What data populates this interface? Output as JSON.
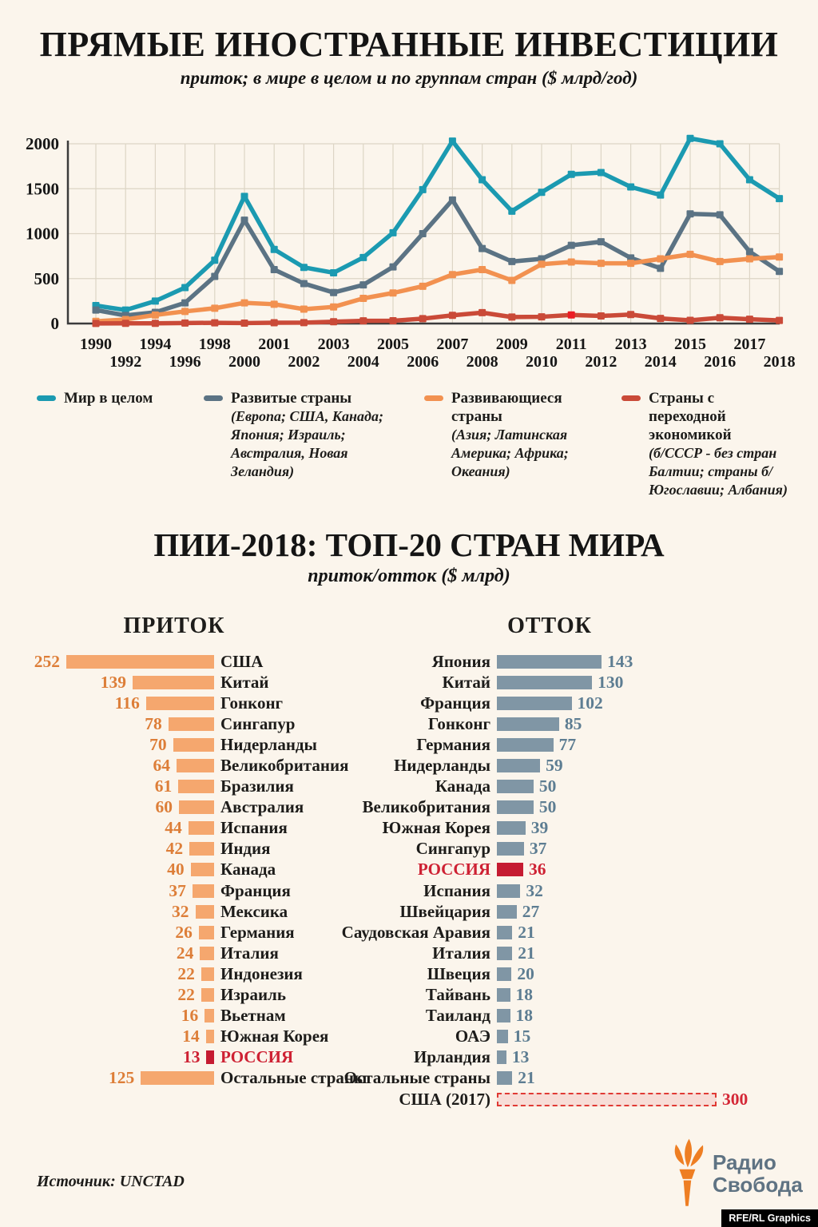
{
  "colors": {
    "background": "#fbf5ec",
    "world": "#1b9ab1",
    "developed": "#5b7384",
    "developing": "#f29150",
    "transition": "#ca4a38",
    "transition_highlight": "#ec1c24",
    "grid": "#ddd5c5",
    "axis": "#3b3b3b",
    "inflow_bar": "#f5a76e",
    "inflow_value": "#dd7e38",
    "outflow_bar": "#8096a5",
    "outflow_value": "#5d7d92",
    "russia_text": "#ce2133",
    "russia_bar": "#c51b31",
    "usa2017_fill": "#f7ddd7",
    "usa2017_border": "#e03a34",
    "usa2017_value": "#d42736",
    "inflow_header": "#f0954d",
    "outflow_header": "#8397a7"
  },
  "header": {
    "title": "ПРЯМЫЕ ИНОСТРАННЫЕ ИНВЕСТИЦИИ",
    "subtitle": "приток; в мире в целом и по группам стран ($ млрд/год)"
  },
  "legend": {
    "items": [
      {
        "label": "Мир в целом",
        "sub": "",
        "color_key": "world"
      },
      {
        "label": "Развитые страны",
        "sub": "(Европа; США, Канада; Япония; Израиль; Австралия, Новая Зеландия)",
        "color_key": "developed"
      },
      {
        "label": "Развивающиеся страны",
        "sub": "(Азия; Латинская Америка; Африка; Океания)",
        "color_key": "developing"
      },
      {
        "label": "Страны с переходной экономикой",
        "sub": "(б/СССР - без стран Балтии; страны б/Югославии; Албания)",
        "color_key": "transition"
      }
    ]
  },
  "section2": {
    "title": "ПИИ-2018: ТОП-20 СТРАН МИРА",
    "subtitle": "приток/отток ($ млрд)",
    "inflow_header": "ПРИТОК",
    "outflow_header": "ОТТОК"
  },
  "footer": {
    "source": "Источник: UNCTAD",
    "logo": {
      "line1": "Радио",
      "line2": "Свобода"
    },
    "credit": "RFE/RL Graphics"
  },
  "chart_data": [
    {
      "type": "line",
      "title": "Прямые иностранные инвестиции: приток, $ млрд/год",
      "x": [
        1990,
        1992,
        1994,
        1996,
        1998,
        2000,
        2001,
        2002,
        2003,
        2004,
        2005,
        2006,
        2007,
        2008,
        2009,
        2010,
        2011,
        2012,
        2013,
        2014,
        2015,
        2016,
        2017,
        2018
      ],
      "ylim": [
        0,
        2000
      ],
      "yticks": [
        0,
        500,
        1000,
        1500,
        2000
      ],
      "grid": true,
      "legend_position": "bottom",
      "series": [
        {
          "name": "Мир в целом",
          "color_key": "world",
          "values": [
            200,
            150,
            250,
            400,
            705,
            1415,
            825,
            625,
            565,
            735,
            1010,
            1490,
            2030,
            1600,
            1250,
            1460,
            1660,
            1680,
            1520,
            1430,
            2060,
            2000,
            1600,
            1390
          ]
        },
        {
          "name": "Развитые страны",
          "color_key": "developed",
          "values": [
            150,
            90,
            125,
            230,
            525,
            1150,
            600,
            445,
            345,
            430,
            630,
            1000,
            1375,
            835,
            690,
            720,
            870,
            910,
            730,
            615,
            1220,
            1210,
            800,
            580
          ]
        },
        {
          "name": "Развивающиеся страны",
          "color_key": "developing",
          "values": [
            25,
            45,
            95,
            135,
            170,
            230,
            215,
            160,
            185,
            280,
            340,
            415,
            545,
            600,
            480,
            660,
            685,
            670,
            670,
            720,
            770,
            690,
            720,
            740
          ]
        },
        {
          "name": "Страны с переходной экономикой",
          "color_key": "transition",
          "highlight_x": 2011,
          "values": [
            1,
            2,
            2,
            6,
            8,
            5,
            9,
            10,
            20,
            30,
            31,
            54,
            91,
            121,
            72,
            75,
            96,
            84,
            100,
            57,
            36,
            64,
            48,
            34
          ]
        }
      ]
    },
    {
      "type": "bar",
      "title": "ПРИТОК",
      "orientation": "horizontal",
      "categories": [
        "США",
        "Китай",
        "Гонконг",
        "Сингапур",
        "Нидерланды",
        "Великобритания",
        "Бразилия",
        "Австралия",
        "Испания",
        "Индия",
        "Канада",
        "Франция",
        "Мексика",
        "Германия",
        "Италия",
        "Индонезия",
        "Израиль",
        "Вьетнам",
        "Южная Корея",
        "РОССИЯ",
        "Остальные страны"
      ],
      "values": [
        252,
        139,
        116,
        78,
        70,
        64,
        61,
        60,
        44,
        42,
        40,
        37,
        32,
        26,
        24,
        22,
        22,
        16,
        14,
        13,
        125
      ],
      "styles": [
        null,
        null,
        null,
        null,
        null,
        null,
        null,
        null,
        null,
        null,
        null,
        null,
        null,
        null,
        null,
        null,
        null,
        null,
        null,
        "highlight",
        null
      ]
    },
    {
      "type": "bar",
      "title": "ОТТОК",
      "orientation": "horizontal",
      "categories": [
        "Япония",
        "Китай",
        "Франция",
        "Гонконг",
        "Германия",
        "Нидерланды",
        "Канада",
        "Великобритания",
        "Южная Корея",
        "Сингапур",
        "РОССИЯ",
        "Испания",
        "Швейцария",
        "Саудовская Аравия",
        "Италия",
        "Швеция",
        "Тайвань",
        "Таиланд",
        "ОАЭ",
        "Ирландия",
        "Остальные страны",
        "США (2017)"
      ],
      "values": [
        143,
        130,
        102,
        85,
        77,
        59,
        50,
        50,
        39,
        37,
        36,
        32,
        27,
        21,
        21,
        20,
        18,
        18,
        15,
        13,
        21,
        300
      ],
      "styles": [
        null,
        null,
        null,
        null,
        null,
        null,
        null,
        null,
        null,
        null,
        "highlight",
        null,
        null,
        null,
        null,
        null,
        null,
        null,
        null,
        null,
        null,
        "dashed"
      ]
    }
  ]
}
